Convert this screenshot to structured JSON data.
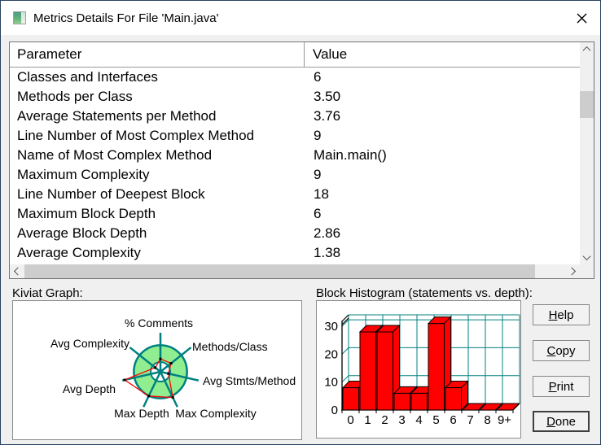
{
  "window": {
    "title": "Metrics Details For File 'Main.java'"
  },
  "table": {
    "columns": [
      "Parameter",
      "Value"
    ],
    "rows": [
      {
        "parameter": "Classes and Interfaces",
        "value": "6"
      },
      {
        "parameter": "Methods per Class",
        "value": "3.50"
      },
      {
        "parameter": "Average Statements per Method",
        "value": "3.76"
      },
      {
        "parameter": "Line Number of Most Complex Method",
        "value": "9"
      },
      {
        "parameter": "Name of Most Complex Method",
        "value": "Main.main()"
      },
      {
        "parameter": "Maximum Complexity",
        "value": "9"
      },
      {
        "parameter": "Line Number of Deepest Block",
        "value": "18"
      },
      {
        "parameter": "Maximum Block Depth",
        "value": "6"
      },
      {
        "parameter": "Average Block Depth",
        "value": "2.86"
      },
      {
        "parameter": "Average Complexity",
        "value": "1.38"
      }
    ]
  },
  "sections": {
    "kiviat_label": "Kiviat Graph:",
    "histogram_label": "Block Histogram (statements vs. depth):"
  },
  "buttons": {
    "help": "Help",
    "copy": "Copy",
    "print": "Print",
    "done": "Done"
  },
  "colors": {
    "teal": "#008080",
    "band_green": "#90ee90",
    "series_red": "#ff0000",
    "scroll_thumb": "#cdcdcd",
    "scroll_track": "#f0f0f0"
  },
  "chart_data": [
    {
      "type": "radar",
      "title": "Kiviat Graph",
      "axes": [
        "% Comments",
        "Methods/Class",
        "Avg Stmts/Method",
        "Max Complexity",
        "Max Depth",
        "Avg Depth",
        "Avg Complexity"
      ],
      "values_normalized": [
        0.33,
        0.35,
        0.21,
        0.73,
        0.69,
        0.94,
        0.17
      ],
      "normal_band": {
        "inner": 0.25,
        "outer": 0.68
      },
      "legend": "none",
      "style": {
        "band_fill": "#90ee90",
        "axis_color": "#008080",
        "series_color": "#ff0000",
        "tick_color": "#000000"
      }
    },
    {
      "type": "bar",
      "title": "Block Histogram (statements vs. depth)",
      "categories": [
        "0",
        "1",
        "2",
        "3",
        "4",
        "5",
        "6",
        "7",
        "8",
        "9+"
      ],
      "values": [
        8,
        28,
        28,
        6,
        6,
        31,
        8,
        0,
        0,
        0
      ],
      "xlabel": "",
      "ylabel": "",
      "ylim": [
        0,
        33
      ],
      "yticks": [
        0,
        10,
        20,
        30
      ],
      "grid": "on",
      "style": {
        "bar_color": "#ff0000",
        "grid_color": "#008080",
        "axis_color": "#000000",
        "effect": "3d"
      }
    }
  ]
}
